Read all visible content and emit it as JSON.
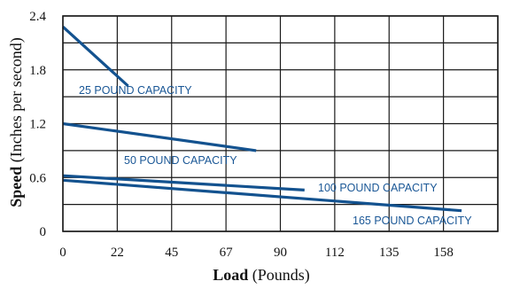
{
  "chart_data": {
    "type": "line",
    "xlabel_bold": "Load",
    "xlabel_rest": " (Pounds)",
    "ylabel_bold": "Speed",
    "ylabel_rest": " (Inches per second)",
    "xlim": [
      0,
      180
    ],
    "ylim": [
      0,
      2.4
    ],
    "x_ticks": [
      0,
      22.5,
      45,
      67.5,
      90,
      112.5,
      135,
      157.5
    ],
    "x_tick_labels": [
      "0",
      "22",
      "45",
      "67",
      "90",
      "112",
      "135",
      "158"
    ],
    "y_ticks": [
      0,
      0.6,
      1.2,
      1.8,
      2.4
    ],
    "y_tick_labels": [
      "0",
      "0.6",
      "1.2",
      "1.8",
      "2.4"
    ],
    "grid": true,
    "line_color": "#13528f",
    "series": [
      {
        "name": "25 POUND CAPACITY",
        "x": [
          0,
          27
        ],
        "y": [
          2.28,
          1.62
        ]
      },
      {
        "name": "50 POUND CAPACITY",
        "x": [
          0,
          80
        ],
        "y": [
          1.2,
          0.9
        ]
      },
      {
        "name": "100 POUND CAPACITY",
        "x": [
          0,
          100
        ],
        "y": [
          0.62,
          0.46
        ]
      },
      {
        "name": "165 POUND CAPACITY",
        "x": [
          0,
          165
        ],
        "y": [
          0.57,
          0.23
        ]
      }
    ]
  }
}
